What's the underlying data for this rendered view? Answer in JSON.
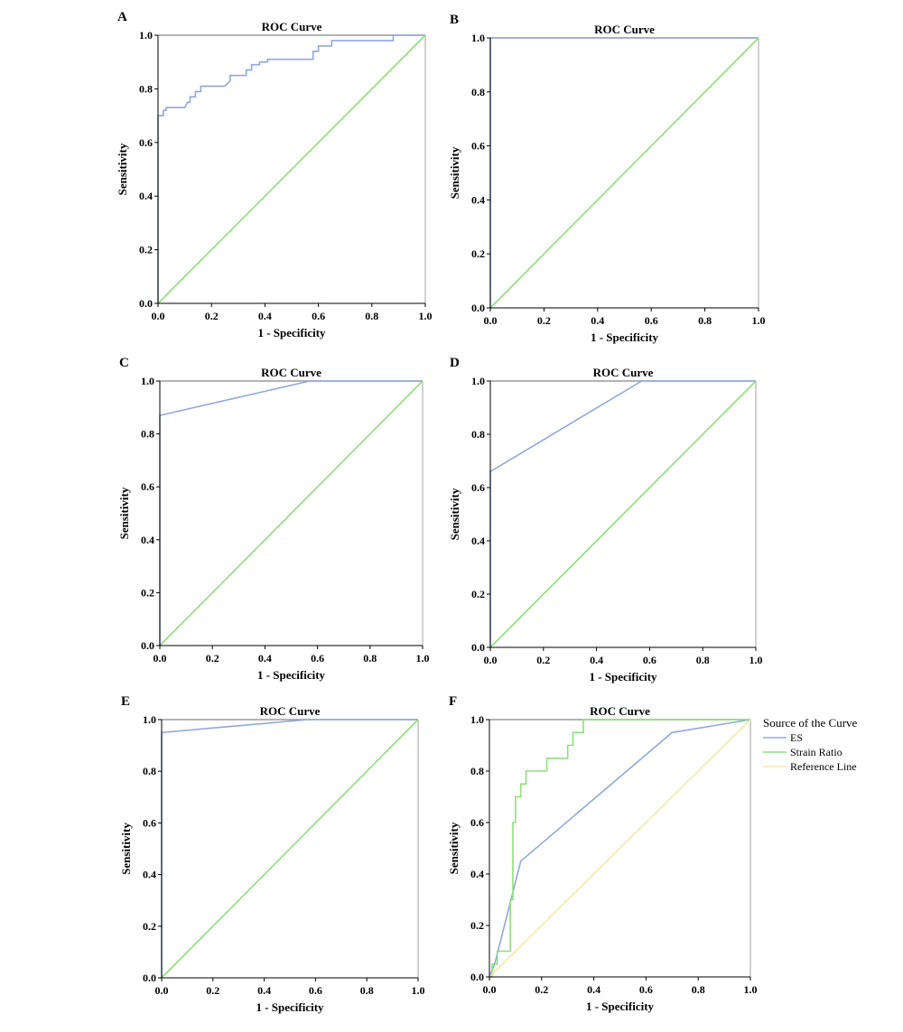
{
  "chart_data": [
    {
      "panel": "A",
      "type": "line",
      "title": "ROC Curve",
      "xlabel": "1 - Specificity",
      "ylabel": "Sensitivity",
      "xlim": [
        0,
        1
      ],
      "ylim": [
        0,
        1
      ],
      "ticks": [
        "0.0",
        "0.2",
        "0.4",
        "0.6",
        "0.8",
        "1.0"
      ],
      "grid": false,
      "series": [
        {
          "color": "#8fa8dc",
          "step": true,
          "x": [
            0,
            0,
            0.02,
            0.02,
            0.03,
            0.03,
            0.1,
            0.11,
            0.12,
            0.12,
            0.14,
            0.14,
            0.16,
            0.16,
            0.25,
            0.27,
            0.27,
            0.33,
            0.33,
            0.35,
            0.35,
            0.38,
            0.38,
            0.41,
            0.41,
            0.58,
            0.58,
            0.6,
            0.6,
            0.65,
            0.65,
            0.75,
            0.88,
            0.88,
            0.92,
            1
          ],
          "y": [
            0,
            0.7,
            0.7,
            0.72,
            0.72,
            0.73,
            0.73,
            0.75,
            0.75,
            0.77,
            0.77,
            0.79,
            0.79,
            0.81,
            0.81,
            0.83,
            0.85,
            0.85,
            0.87,
            0.87,
            0.89,
            0.89,
            0.9,
            0.9,
            0.91,
            0.91,
            0.94,
            0.94,
            0.96,
            0.96,
            0.98,
            0.98,
            0.98,
            1,
            1,
            1
          ]
        },
        {
          "color": "#8ee07a",
          "x": [
            0,
            1
          ],
          "y": [
            0,
            1
          ]
        }
      ]
    },
    {
      "panel": "B",
      "type": "line",
      "title": "ROC Curve",
      "xlabel": "1 - Specificity",
      "ylabel": "Sensitivity",
      "xlim": [
        0,
        1
      ],
      "ylim": [
        0,
        1
      ],
      "ticks": [
        "0.0",
        "0.2",
        "0.4",
        "0.6",
        "0.8",
        "1.0"
      ],
      "grid": false,
      "series": [
        {
          "color": "#8fa8dc",
          "x": [
            0,
            0,
            1
          ],
          "y": [
            0,
            1,
            1
          ]
        },
        {
          "color": "#8ee07a",
          "x": [
            0,
            1
          ],
          "y": [
            0,
            1
          ]
        }
      ]
    },
    {
      "panel": "C",
      "type": "line",
      "title": "ROC Curve",
      "xlabel": "1 - Specificity",
      "ylabel": "Sensitivity",
      "xlim": [
        0,
        1
      ],
      "ylim": [
        0,
        1
      ],
      "ticks": [
        "0.0",
        "0.2",
        "0.4",
        "0.6",
        "0.8",
        "1.0"
      ],
      "grid": false,
      "series": [
        {
          "color": "#8fa8dc",
          "x": [
            0,
            0,
            0.57,
            1
          ],
          "y": [
            0,
            0.87,
            1,
            1
          ]
        },
        {
          "color": "#8ee07a",
          "x": [
            0,
            1
          ],
          "y": [
            0,
            1
          ]
        }
      ]
    },
    {
      "panel": "D",
      "type": "line",
      "title": "ROC Curve",
      "xlabel": "1 - Specificity",
      "ylabel": "Sensitivity",
      "xlim": [
        0,
        1
      ],
      "ylim": [
        0,
        1
      ],
      "ticks": [
        "0.0",
        "0.2",
        "0.4",
        "0.6",
        "0.8",
        "1.0"
      ],
      "grid": false,
      "series": [
        {
          "color": "#8fa8dc",
          "x": [
            0,
            0,
            0.57,
            1
          ],
          "y": [
            0,
            0.66,
            1,
            1
          ]
        },
        {
          "color": "#8ee07a",
          "x": [
            0,
            1
          ],
          "y": [
            0,
            1
          ]
        }
      ]
    },
    {
      "panel": "E",
      "type": "line",
      "title": "ROC Curve",
      "xlabel": "1 - Specificity",
      "ylabel": "Sensitivity",
      "xlim": [
        0,
        1
      ],
      "ylim": [
        0,
        1
      ],
      "ticks": [
        "0.0",
        "0.2",
        "0.4",
        "0.6",
        "0.8",
        "1.0"
      ],
      "grid": false,
      "series": [
        {
          "color": "#8fa8dc",
          "x": [
            0,
            0,
            0.57,
            1
          ],
          "y": [
            0,
            0.95,
            1,
            1
          ]
        },
        {
          "color": "#8ee07a",
          "x": [
            0,
            1
          ],
          "y": [
            0,
            1
          ]
        }
      ]
    },
    {
      "panel": "F",
      "type": "line",
      "title": "ROC Curve",
      "xlabel": "1 - Specificity",
      "ylabel": "Sensitivity",
      "xlim": [
        0,
        1
      ],
      "ylim": [
        0,
        1
      ],
      "ticks": [
        "0.0",
        "0.2",
        "0.4",
        "0.6",
        "0.8",
        "1.0"
      ],
      "grid": false,
      "legend": {
        "title": "Source of the Curve",
        "placement": "right",
        "entries": [
          {
            "label": "ES",
            "color": "#8fa8dc"
          },
          {
            "label": "Strain Ratio",
            "color": "#8ee07a"
          },
          {
            "label": "Reference Line",
            "color": "#f0eca8"
          }
        ]
      },
      "series": [
        {
          "name": "ES",
          "color": "#8fa8dc",
          "x": [
            0,
            0.02,
            0.12,
            0.7,
            1
          ],
          "y": [
            0,
            0.05,
            0.45,
            0.95,
            1
          ]
        },
        {
          "name": "Strain Ratio",
          "color": "#8ee07a",
          "step": true,
          "x": [
            0,
            0.01,
            0.01,
            0.03,
            0.03,
            0.08,
            0.08,
            0.09,
            0.09,
            0.1,
            0.1,
            0.12,
            0.12,
            0.14,
            0.14,
            0.15,
            0.15,
            0.22,
            0.22,
            0.3,
            0.3,
            0.32,
            0.32,
            0.34,
            0.34,
            0.36,
            0.36,
            1
          ],
          "y": [
            0,
            0,
            0.05,
            0.05,
            0.1,
            0.1,
            0.3,
            0.3,
            0.6,
            0.6,
            0.7,
            0.7,
            0.75,
            0.75,
            0.8,
            0.8,
            0.8,
            0.8,
            0.85,
            0.85,
            0.9,
            0.9,
            0.95,
            0.95,
            0.95,
            0.95,
            1,
            1
          ]
        },
        {
          "name": "Reference Line",
          "color": "#f0eca8",
          "x": [
            0,
            1
          ],
          "y": [
            0,
            1
          ]
        }
      ]
    }
  ]
}
